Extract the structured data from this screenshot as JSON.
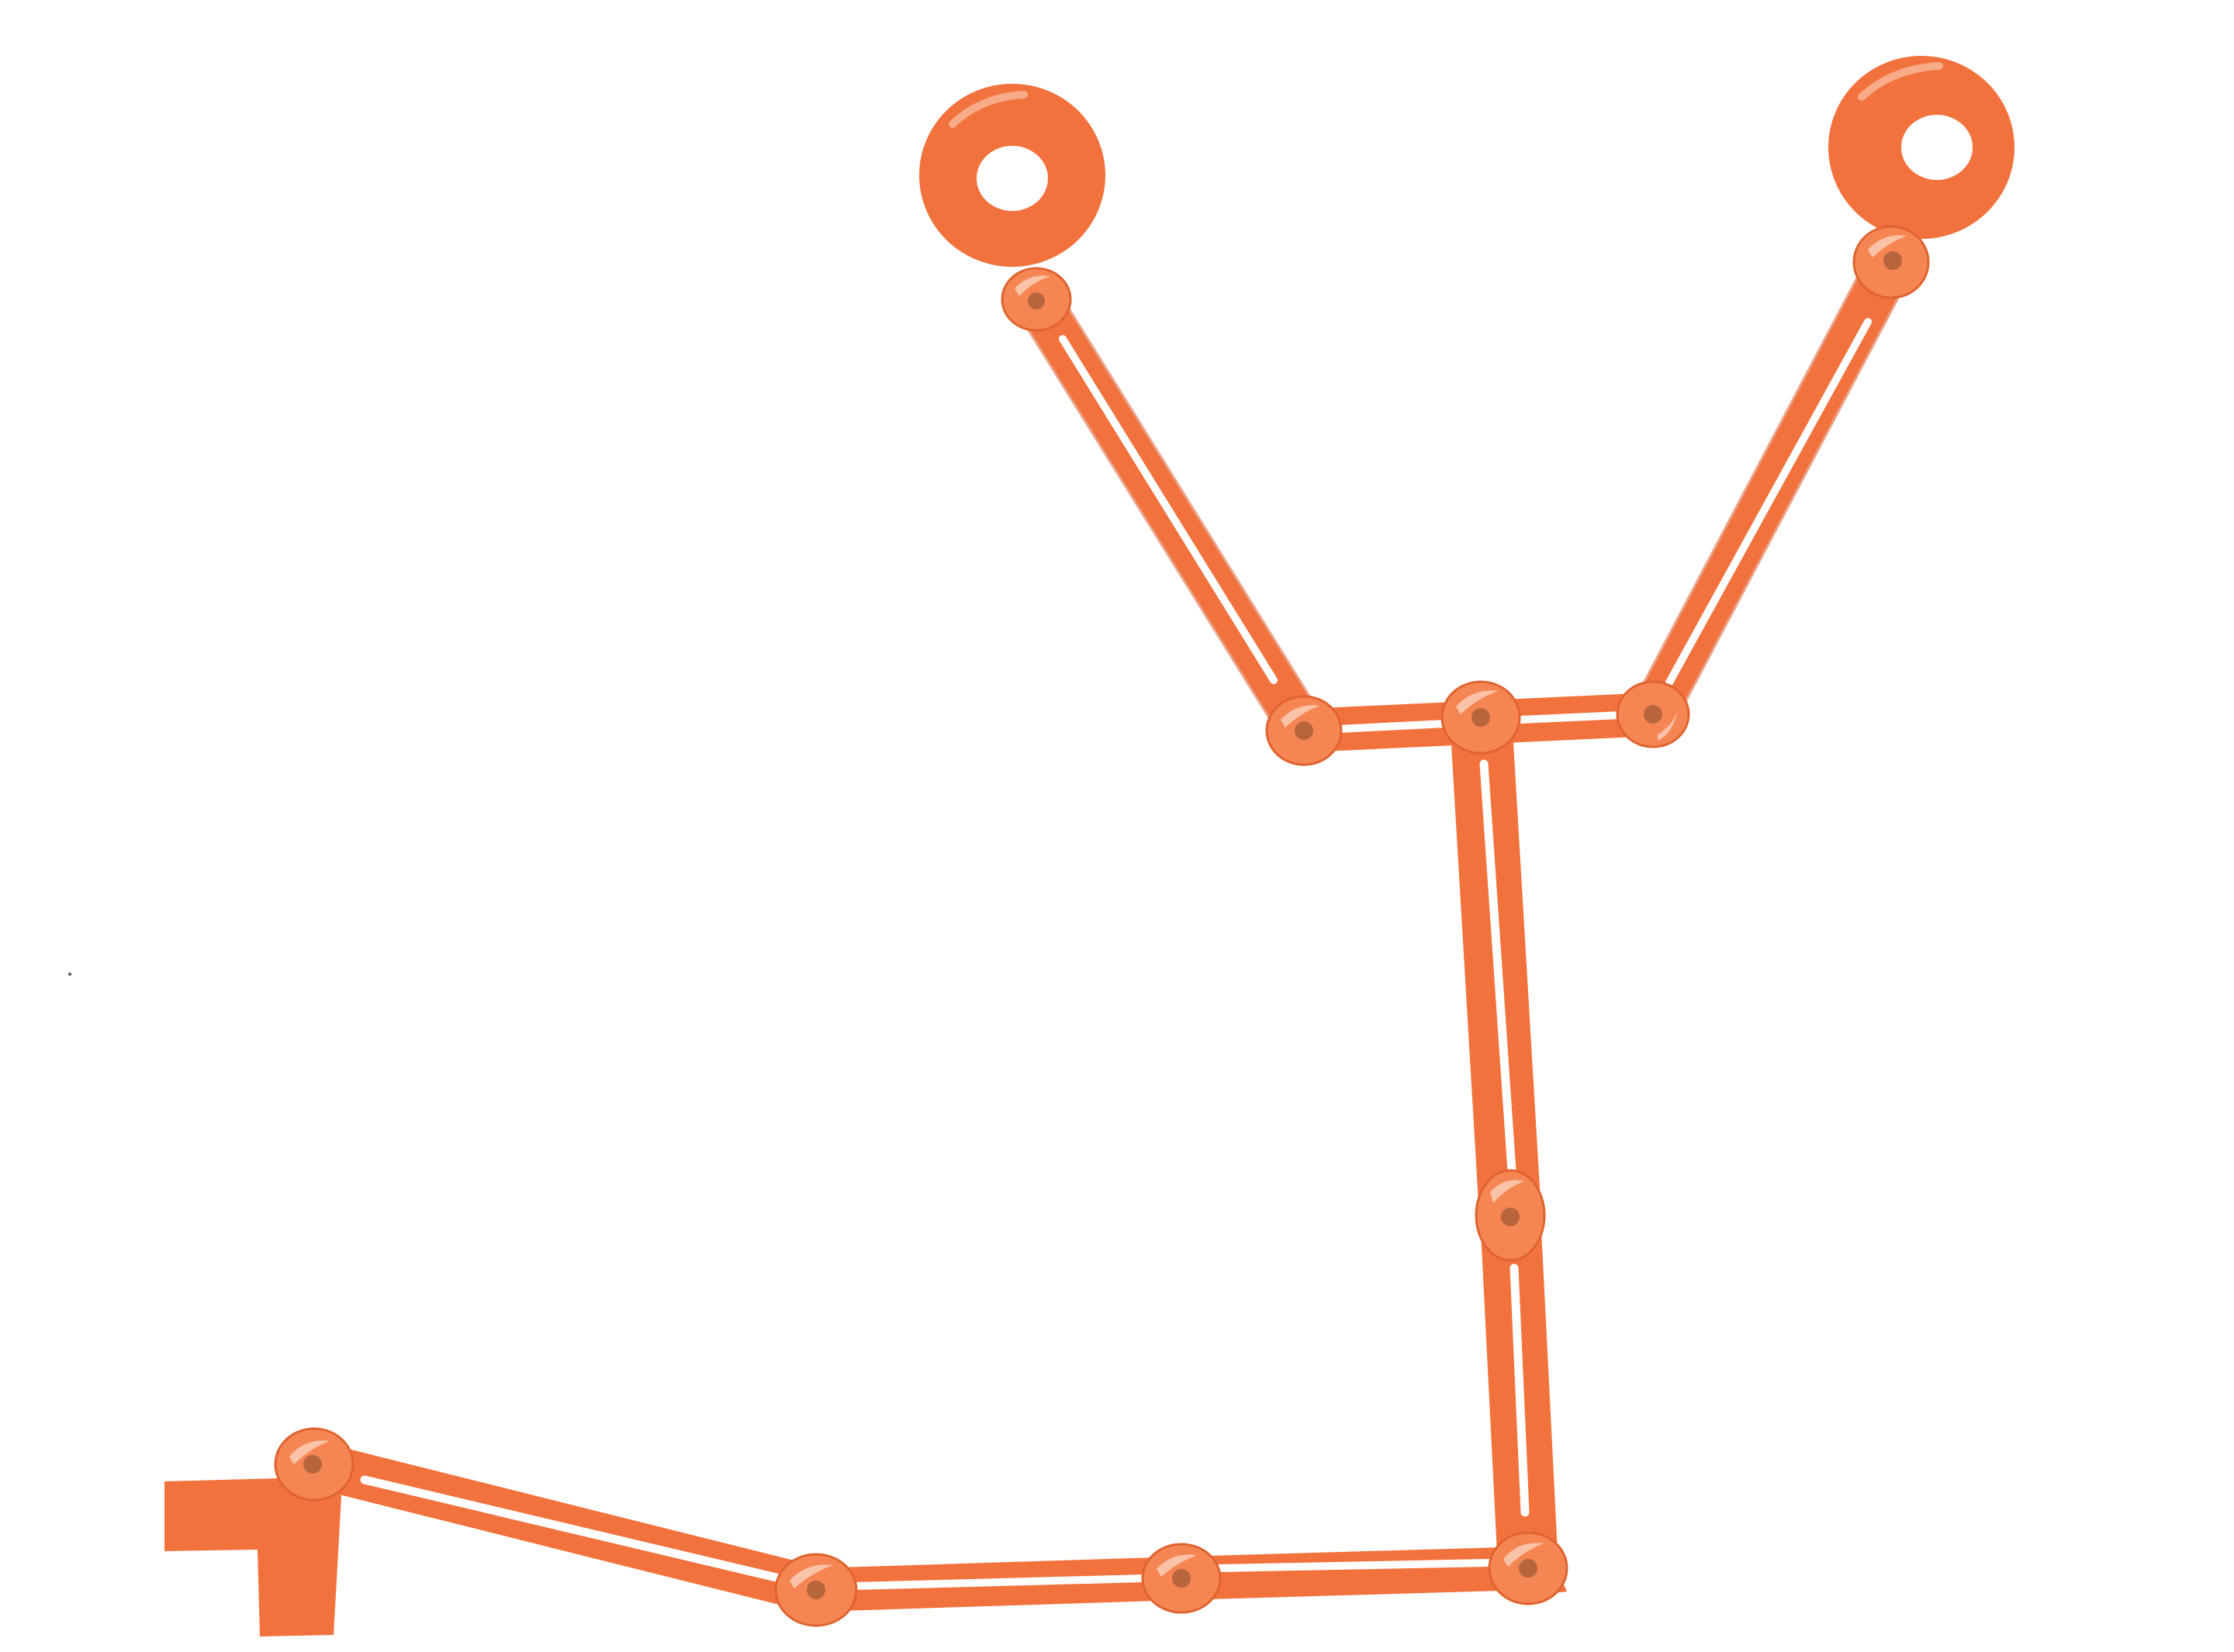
{
  "photo": {
    "subject": "orange-articulated-linkage-arm",
    "background_color": "#ffffff",
    "colors": {
      "body": "#f2723e",
      "edge_shade": "#d9582a",
      "highlight": "#fbd2bb",
      "rivet": "#b8643c",
      "slot": "#ffffff"
    },
    "segments": [
      "upper-left-arm",
      "upper-right-arm",
      "crossbar",
      "vertical-upper",
      "vertical-lower",
      "bottom-right",
      "bottom-middle",
      "bottom-left",
      "foot-tab"
    ],
    "rings": [
      "left-ring",
      "right-ring"
    ]
  }
}
